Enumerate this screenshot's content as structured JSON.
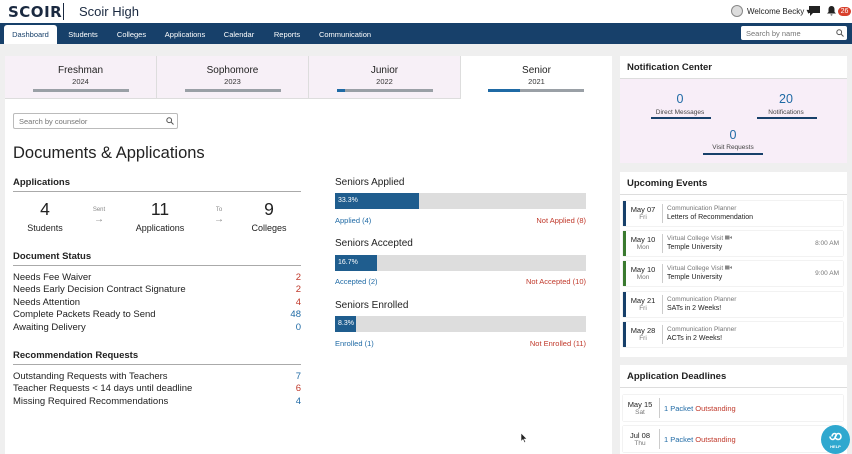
{
  "app": {
    "logo": "SCOIR",
    "school": "Scoir High",
    "welcome": "Welcome Becky",
    "welcome_caret": "▾",
    "notification_count": "26"
  },
  "nav": {
    "tabs": [
      {
        "label": "Dashboard"
      },
      {
        "label": "Students"
      },
      {
        "label": "Colleges"
      },
      {
        "label": "Applications"
      },
      {
        "label": "Calendar"
      },
      {
        "label": "Reports"
      },
      {
        "label": "Communication"
      }
    ],
    "search_placeholder": "Search by name"
  },
  "years": [
    {
      "name": "Freshman",
      "year": "2024",
      "progress": 0
    },
    {
      "name": "Sophomore",
      "year": "2023",
      "progress": 0
    },
    {
      "name": "Junior",
      "year": "2022",
      "progress": 0.08
    },
    {
      "name": "Senior",
      "year": "2021",
      "progress": 0.33
    }
  ],
  "counselor_search_placeholder": "Search by counselor",
  "documents": {
    "title": "Documents & Applications",
    "applications": {
      "heading": "Applications",
      "students_count": "4",
      "students_label": "Students",
      "sent_label": "Sent",
      "applications_count": "11",
      "applications_label": "Applications",
      "to_label": "To",
      "colleges_count": "9",
      "colleges_label": "Colleges",
      "arrow": "→"
    },
    "document_status": {
      "heading": "Document Status",
      "rows": [
        {
          "label": "Needs Fee Waiver",
          "value": "2"
        },
        {
          "label": "Needs Early Decision Contract Signature",
          "value": "2"
        },
        {
          "label": "Needs Attention",
          "value": "4"
        },
        {
          "label": "Complete Packets Ready to Send",
          "value": "48"
        },
        {
          "label": "Awaiting Delivery",
          "value": "0"
        }
      ]
    },
    "recommendations": {
      "heading": "Recommendation Requests",
      "rows": [
        {
          "label": "Outstanding Requests with Teachers",
          "value": "7"
        },
        {
          "label": "Teacher Requests < 14 days until deadline",
          "value": "6"
        },
        {
          "label": "Missing Required Recommendations",
          "value": "4"
        }
      ]
    }
  },
  "seniors": [
    {
      "heading": "Seniors Applied",
      "percent_label": "33.3%",
      "fraction": 0.333,
      "left": "Applied (4)",
      "right": "Not Applied (8)"
    },
    {
      "heading": "Seniors Accepted",
      "percent_label": "16.7%",
      "fraction": 0.167,
      "left": "Accepted (2)",
      "right": "Not Accepted (10)"
    },
    {
      "heading": "Seniors Enrolled",
      "percent_label": "8.3%",
      "fraction": 0.083,
      "left": "Enrolled (1)",
      "right": "Not Enrolled (11)"
    }
  ],
  "notification_center": {
    "heading": "Notification Center",
    "items": [
      {
        "count": "0",
        "label": "Direct Messages"
      },
      {
        "count": "20",
        "label": "Notifications"
      },
      {
        "count": "0",
        "label": "Visit Requests"
      }
    ]
  },
  "upcoming_events": {
    "heading": "Upcoming Events",
    "items": [
      {
        "date": "May 07",
        "day": "Fri",
        "type": "Communication Planner",
        "title": "Letters of Recommendation",
        "time": "",
        "color": "#17406a"
      },
      {
        "date": "May 10",
        "day": "Mon",
        "type": "Virtual College Visit",
        "title": "Temple University",
        "time": "8:00 AM",
        "color": "#3a7a2f"
      },
      {
        "date": "May 10",
        "day": "Mon",
        "type": "Virtual College Visit",
        "title": "Temple University",
        "time": "9:00 AM",
        "color": "#3a7a2f"
      },
      {
        "date": "May 21",
        "day": "Fri",
        "type": "Communication Planner",
        "title": "SATs in 2 Weeks!",
        "time": "",
        "color": "#17406a"
      },
      {
        "date": "May 28",
        "day": "Fri",
        "type": "Communication Planner",
        "title": "ACTs in 2 Weeks!",
        "time": "",
        "color": "#17406a"
      }
    ]
  },
  "application_deadlines": {
    "heading": "Application Deadlines",
    "items": [
      {
        "date": "May 15",
        "day": "Sat",
        "count": "1 Packet",
        "status": "Outstanding"
      },
      {
        "date": "Jul 08",
        "day": "Thu",
        "count": "1 Packet",
        "status": "Outstanding"
      }
    ]
  },
  "help_label": "HELP"
}
